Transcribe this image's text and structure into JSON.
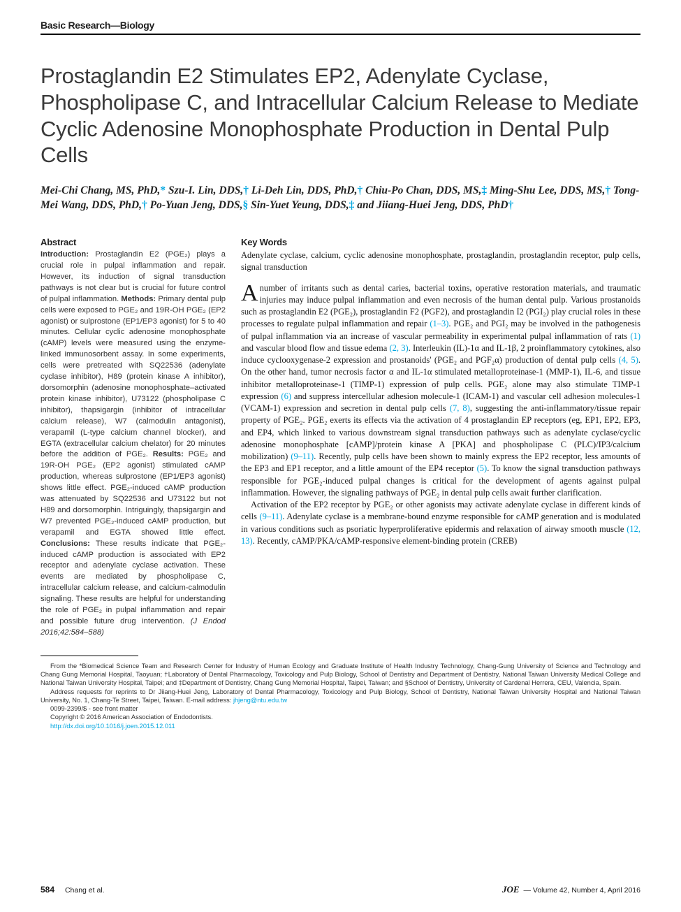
{
  "section_header": "Basic Research—Biology",
  "title": "Prostaglandin E2 Stimulates EP2, Adenylate Cyclase, Phospholipase C, and Intracellular Calcium Release to Mediate Cyclic Adenosine Monophosphate Production in Dental Pulp Cells",
  "authors_html": "Mei-Chi Chang, MS, PhD,<span class='aff'>*</span> Szu-I. Lin, DDS,<span class='aff'>†</span> Li-Deh Lin, DDS, PhD,<span class='aff'>†</span> Chiu-Po Chan, DDS, MS,<span class='aff'>‡</span> Ming-Shu Lee, DDS, MS,<span class='aff'>†</span> Tong-Mei Wang, DDS, PhD,<span class='aff'>†</span> Po-Yuan Jeng, DDS,<span class='aff'>§</span> Sin-Yuet Yeung, DDS,<span class='aff'>‡</span> and Jiiang-Huei Jeng, DDS, PhD<span class='aff'>†</span>",
  "abstract": {
    "heading": "Abstract",
    "intro_label": "Introduction:",
    "intro": " Prostaglandin E2 (PGE₂) plays a crucial role in pulpal inflammation and repair. However, its induction of signal transduction pathways is not clear but is crucial for future control of pulpal inflammation. ",
    "methods_label": "Methods:",
    "methods": " Primary dental pulp cells were exposed to PGE₂ and 19R-OH PGE₂ (EP2 agonist) or sulprostone (EP1/EP3 agonist) for 5 to 40 minutes. Cellular cyclic adenosine monophosphate (cAMP) levels were measured using the enzyme-linked immunosorbent assay. In some experiments, cells were pretreated with SQ22536 (adenylate cyclase inhibitor), H89 (protein kinase A inhibitor), dorsomorphin (adenosine monophosphate–activated protein kinase inhibitor), U73122 (phospholipase C inhibitor), thapsigargin (inhibitor of intracellular calcium release), W7 (calmodulin antagonist), verapamil (L-type calcium channel blocker), and EGTA (extracellular calcium chelator) for 20 minutes before the addition of PGE₂. ",
    "results_label": "Results:",
    "results": " PGE₂ and 19R-OH PGE₂ (EP2 agonist) stimulated cAMP production, whereas sulprostone (EP1/EP3 agonist) shows little effect. PGE₂-induced cAMP production was attenuated by SQ22536 and U73122 but not H89 and dorsomorphin. Intriguingly, thapsigargin and W7 prevented PGE₂-induced cAMP production, but verapamil and EGTA showed little effect. ",
    "conclusions_label": "Conclusions:",
    "conclusions": " These results indicate that PGE₂-induced cAMP production is associated with EP2 receptor and adenylate cyclase activation. These events are mediated by phospholipase C, intracellular calcium release, and calcium-calmodulin signaling. These results are helpful for understanding the role of PGE₂ in pulpal inflammation and repair and possible future drug intervention. ",
    "citation": "(J Endod 2016;42:584–588)"
  },
  "keywords": {
    "heading": "Key Words",
    "text": "Adenylate cyclase, calcium, cyclic adenosine monophosphate, prostaglandin, prostaglandin receptor, pulp cells, signal transduction"
  },
  "body": {
    "p1_dropcap": "A",
    "p1": "number of irritants such as dental caries, bacterial toxins, operative restoration materials, and traumatic injuries may induce pulpal inflammation and even necrosis of the human dental pulp. Various prostanoids such as prostaglandin E2 (PGE₂), prostaglandin F2 (PGF2), and prostaglandin I2 (PGI₂) play crucial roles in these processes to regulate pulpal inflammation and repair ",
    "p1_ref1": "(1–3)",
    "p1b": ". PGE₂ and PGI₂ may be involved in the pathogenesis of pulpal inflammation via an increase of vascular permeability in experimental pulpal inflammation of rats ",
    "p1_ref2": "(1)",
    "p1c": " and vascular blood flow and tissue edema ",
    "p1_ref3": "(2, 3)",
    "p1d": ". Interleukin (IL)-1α and IL-1β, 2 proinflammatory cytokines, also induce cyclooxygenase-2 expression and prostanoids' (PGE₂ and PGF₂α) production of dental pulp cells ",
    "p1_ref4": "(4, 5)",
    "p1e": ". On the other hand, tumor necrosis factor α and IL-1α stimulated metalloproteinase-1 (MMP-1), IL-6, and tissue inhibitor metalloproteinase-1 (TIMP-1) expression of pulp cells. PGE₂ alone may also stimulate TIMP-1 expression ",
    "p1_ref5": "(6)",
    "p1f": " and suppress intercellular adhesion molecule-1 (ICAM-1) and vascular cell adhesion molecules-1 (VCAM-1) expression and secretion in dental pulp cells ",
    "p1_ref6": "(7, 8)",
    "p1g": ", suggesting the anti-inflammatory/tissue repair property of PGE₂. PGE₂ exerts its effects via the activation of 4 prostaglandin EP receptors (eg, EP1, EP2, EP3, and EP4, which linked to various downstream signal transduction pathways such as adenylate cyclase/cyclic adenosine monophosphate [cAMP]/protein kinase A [PKA] and phospholipase C (PLC)/IP3/calcium mobilization) ",
    "p1_ref7": "(9–11)",
    "p1h": ". Recently, pulp cells have been shown to mainly express the EP2 receptor, less amounts of the EP3 and EP1 receptor, and a little amount of the EP4 receptor ",
    "p1_ref8": "(5)",
    "p1i": ". To know the signal transduction pathways responsible for PGE₂-induced pulpal changes is critical for the development of agents against pulpal inflammation. However, the signaling pathways of PGE₂ in dental pulp cells await further clarification.",
    "p2a": "Activation of the EP2 receptor by PGE₂ or other agonists may activate adenylate cyclase in different kinds of cells ",
    "p2_ref1": "(9–11)",
    "p2b": ". Adenylate cyclase is a membrane-bound enzyme responsible for cAMP generation and is modulated in various conditions such as psoriatic hyperproliferative epidermis and relaxation of airway smooth muscle ",
    "p2_ref2": "(12, 13)",
    "p2c": ". Recently, cAMP/PKA/cAMP-responsive element-binding protein (CREB)"
  },
  "footnotes": {
    "affil": "From the *Biomedical Science Team and Research Center for Industry of Human Ecology and Graduate Institute of Health Industry Technology, Chang-Gung University of Science and Technology and Chang Gung Memorial Hospital, Taoyuan; †Laboratory of Dental Pharmacology, Toxicology and Pulp Biology, School of Dentistry and Department of Dentistry, National Taiwan University Medical College and National Taiwan University Hospital, Taipei; and ‡Department of Dentistry, Chang Gung Memorial Hospital, Taipei, Taiwan; and §School of Dentistry, University of Cardenal Herrera, CEU, Valencia, Spain.",
    "corr_a": "Address requests for reprints to Dr Jiiang-Huei Jeng, Laboratory of Dental Pharmacology, Toxicology and Pulp Biology, School of Dentistry, National Taiwan University Hospital and National Taiwan University, No. 1, Chang-Te Street, Taipei, Taiwan. E-mail address: ",
    "corr_email": "jhjeng@ntu.edu.tw",
    "issn": "0099-2399/$ - see front matter",
    "copyright": "Copyright © 2016 American Association of Endodontists.",
    "doi": "http://dx.doi.org/10.1016/j.joen.2015.12.011"
  },
  "footer": {
    "page": "584",
    "authors_short": "Chang et al.",
    "journal": "JOE",
    "issue": " — Volume 42, Number 4, April 2016"
  },
  "colors": {
    "link": "#00a6e0",
    "text": "#1a1a1a",
    "title": "#3a3a3a"
  }
}
